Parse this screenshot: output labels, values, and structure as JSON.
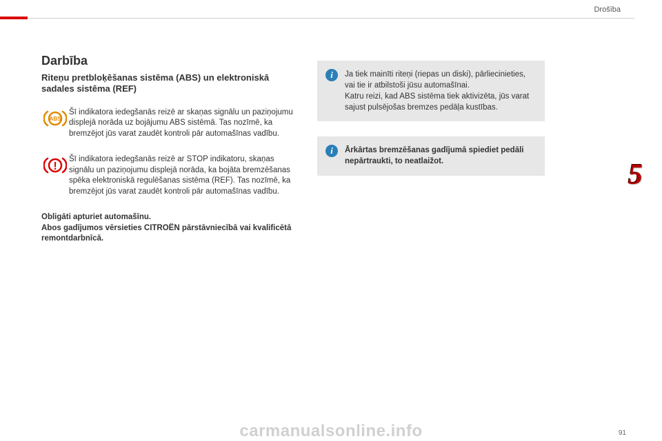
{
  "header": {
    "category": "Drošība"
  },
  "left": {
    "title": "Darbība",
    "subtitle": "Riteņu pretbloķēšanas sistēma (ABS) un elektroniskā sadales sistēma (REF)",
    "warn1": "Šī indikatora iedegšanās reizē ar skaņas signālu un paziņojumu displejā norāda uz bojājumu ABS sistēmā. Tas nozīmē, ka bremzējot jūs varat zaudēt kontroli pār automašīnas vadību.",
    "warn2": "Šī indikatora iedegšanās reizē ar STOP indikatoru, skaņas signālu un paziņojumu displejā norāda, ka bojāta bremzēšanas spēka elektroniskā regulēšanas sistēma (REF). Tas nozīmē, ka bremzējot jūs varat zaudēt kontroli pār automašīnas vadību.",
    "bold_para": "Obligāti apturiet automašīnu.\nAbos gadījumos vērsieties CITROËN pārstāvniecībā vai kvalificētā remontdarbnīcā."
  },
  "right": {
    "info1_a": "Ja tiek mainīti riteņi (riepas un diski), pārliecinieties, vai tie ir atbilstoši jūsu automašīnai.",
    "info1_b": "Katru reizi, kad ABS sistēma tiek aktivizēta, jūs varat sajust pulsējošas bremzes pedāļa kustības.",
    "info2": "Ārkārtas bremzēšanas gadījumā spiediet pedāli nepārtraukti, to neatlaižot."
  },
  "side_number": "5",
  "page_number": "91",
  "watermark": "carmanualsonline.info",
  "icons": {
    "abs_label": "ABS",
    "brake_label": "!"
  }
}
